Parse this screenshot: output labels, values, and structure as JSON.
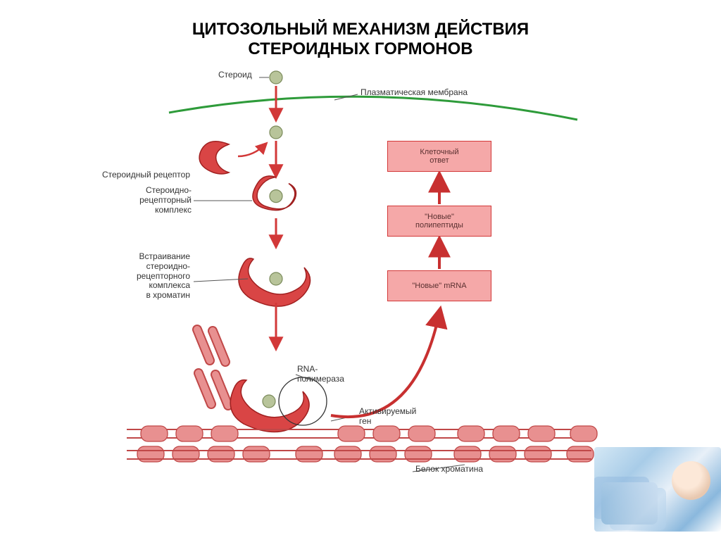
{
  "title": {
    "line1": "ЦИТОЗОЛЬНЫЙ МЕХАНИЗМ ДЕЙСТВИЯ",
    "line2": "СТЕРОИДНЫХ ГОРМОНОВ",
    "fontsize": 24,
    "color": "#000000"
  },
  "colors": {
    "membrane": "#2e9b3a",
    "receptor_fill": "#d94545",
    "receptor_stroke": "#a02020",
    "steroid_fill": "#b8c49a",
    "steroid_stroke": "#7a8a5a",
    "arrow": "#d23838",
    "box_fill": "#f5a8a8",
    "box_stroke": "#d23838",
    "box_text": "#5a3030",
    "chromatin_fill": "#e89090",
    "chromatin_stroke": "#c04848",
    "label_text": "#333333",
    "pointer_line": "#555555",
    "response_arrow": "#c83030"
  },
  "labels": {
    "steroid": "Стероид",
    "membrane": "Плазматическая мембрана",
    "receptor": "Стероидный рецептор",
    "complex": "Стероидно-\nрецепторный\nкомплекс",
    "insertion": "Встраивание\nстероидно-\nрецепторного\nкомплекса\nв хроматин",
    "polymerase": "RNA-\nполимераза",
    "gene": "Активируемый\nген",
    "chromatin_protein": "Белок хроматина",
    "fontsize": 12
  },
  "boxes": {
    "cell_response": "Клеточный\nответ",
    "polypeptides": "\"Новые\"\nполипептиды",
    "mrna": "\"Новые\" mRNA",
    "fontsize": 11,
    "width": 148,
    "height": 44
  },
  "geometry": {
    "steroid_radius": 9,
    "arrow_width": 10,
    "membrane_stroke_width": 3,
    "chromatin_rod_height": 14
  }
}
